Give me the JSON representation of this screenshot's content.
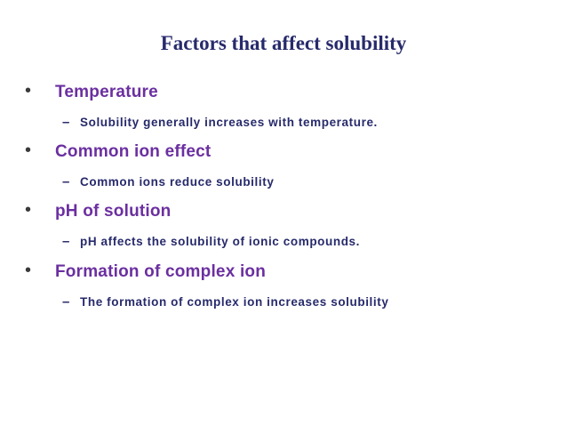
{
  "title": "Factors that affect solubility",
  "items": [
    {
      "heading": "Temperature",
      "sub": "Solubility generally increases with temperature."
    },
    {
      "heading": "Common ion effect",
      "sub": "Common ions reduce solubility"
    },
    {
      "heading": "pH of solution",
      "sub": "pH affects the solubility of ionic compounds."
    },
    {
      "heading": "Formation of complex ion",
      "sub": "The formation of complex ion increases solubility"
    }
  ]
}
